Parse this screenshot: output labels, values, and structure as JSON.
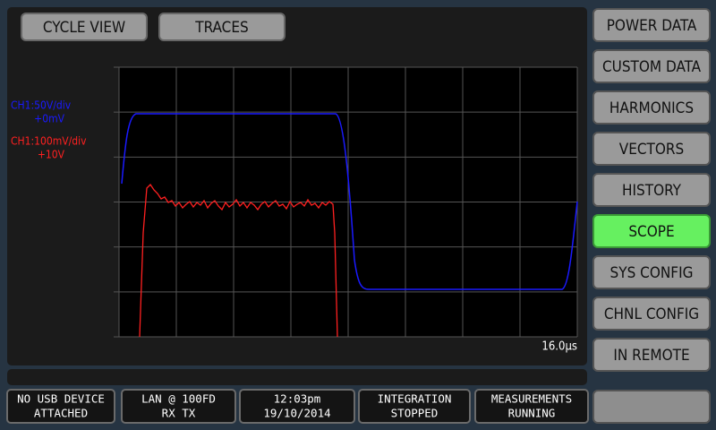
{
  "tabs": [
    "CYCLE VIEW",
    "TRACES"
  ],
  "channels": [
    {
      "scale": "CH1:50V/div",
      "offset": "+0mV",
      "color": "#1a1aff"
    },
    {
      "scale": "CH1:100mV/div",
      "offset": "+10V",
      "color": "#ff2020"
    }
  ],
  "time_label": "16.0µs",
  "menu": [
    {
      "label": "POWER DATA",
      "active": false
    },
    {
      "label": "CUSTOM DATA",
      "active": false
    },
    {
      "label": "HARMONICS",
      "active": false
    },
    {
      "label": "VECTORS",
      "active": false
    },
    {
      "label": "HISTORY",
      "active": false
    },
    {
      "label": "SCOPE",
      "active": true
    },
    {
      "label": "SYS CONFIG",
      "active": false
    },
    {
      "label": "CHNL CONFIG",
      "active": false
    },
    {
      "label": "IN REMOTE",
      "active": false
    }
  ],
  "status": [
    [
      "NO USB DEVICE",
      "ATTACHED"
    ],
    [
      "LAN @ 100FD",
      "RX TX"
    ],
    [
      "12:03pm",
      "19/10/2014"
    ],
    [
      "INTEGRATION",
      "STOPPED"
    ],
    [
      "MEASUREMENTS",
      "RUNNING"
    ]
  ]
}
